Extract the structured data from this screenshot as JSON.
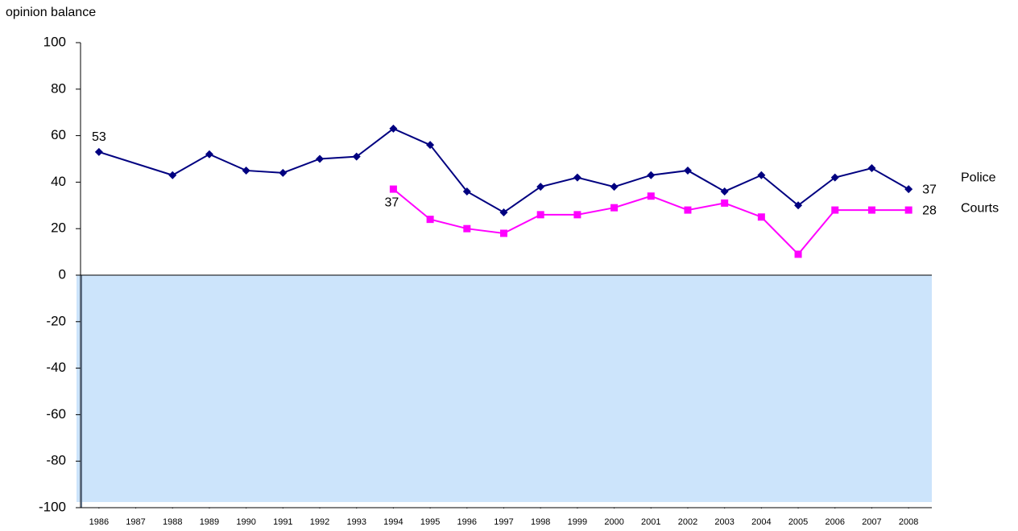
{
  "chart_data": {
    "type": "line",
    "y_label": "opinion balance",
    "xlim": [
      1985.5,
      2008.5
    ],
    "xticks": [
      1986,
      1987,
      1988,
      1989,
      1990,
      1991,
      1992,
      1993,
      1994,
      1995,
      1996,
      1997,
      1998,
      1999,
      2000,
      2001,
      2002,
      2003,
      2004,
      2005,
      2006,
      2007,
      2008
    ],
    "ylim": [
      -100,
      100
    ],
    "yticks": [
      -100,
      -80,
      -60,
      -40,
      -20,
      0,
      20,
      40,
      60,
      80,
      100
    ],
    "negative_shade_color": "#cce4fb",
    "series": [
      {
        "name": "Police",
        "color": "#000080",
        "marker": "diamond",
        "x": [
          1986,
          1988,
          1989,
          1990,
          1991,
          1992,
          1993,
          1994,
          1995,
          1996,
          1997,
          1998,
          1999,
          2000,
          2001,
          2002,
          2003,
          2004,
          2005,
          2006,
          2007,
          2008
        ],
        "values": [
          53,
          43,
          52,
          45,
          44,
          50,
          51,
          63,
          56,
          36,
          27,
          38,
          42,
          38,
          43,
          45,
          36,
          43,
          30,
          42,
          46,
          37
        ]
      },
      {
        "name": "Courts",
        "color": "#ff00ff",
        "marker": "square",
        "x": [
          1994,
          1995,
          1996,
          1997,
          1998,
          1999,
          2000,
          2001,
          2002,
          2003,
          2004,
          2005,
          2006,
          2007,
          2008
        ],
        "values": [
          37,
          24,
          20,
          18,
          26,
          26,
          29,
          34,
          28,
          31,
          25,
          9,
          28,
          28,
          28
        ]
      }
    ]
  }
}
